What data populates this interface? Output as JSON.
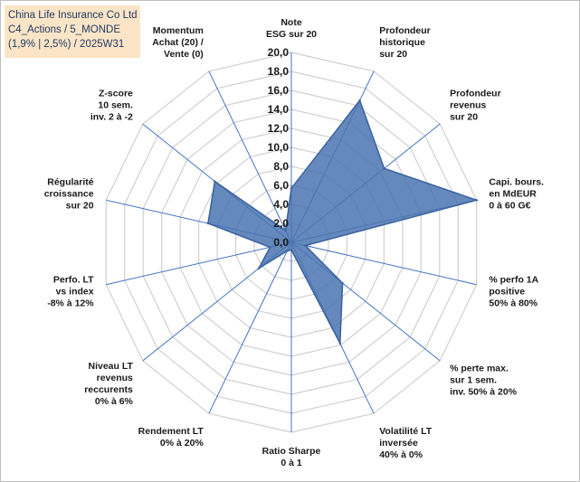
{
  "title_box": {
    "line1": "China Life Insurance Co Ltd",
    "line2": "C4_Actions / 5_MONDE",
    "line3": "(1,9% | 2,5%) / 2025W31"
  },
  "chart_data": {
    "type": "radar",
    "rmin": 0,
    "rmax": 20,
    "ticks": [
      "0,0",
      "2,0",
      "4,0",
      "6,0",
      "8,0",
      "10,0",
      "12,0",
      "14,0",
      "16,0",
      "18,0",
      "20,0"
    ],
    "grid": true,
    "colors": {
      "fill": "#4a74b0",
      "stroke": "#3a62a0",
      "grid": "#d0d0d0",
      "spoke": "#4472c4"
    },
    "categories": [
      [
        "Note",
        "ESG sur 20"
      ],
      [
        "Profondeur",
        "historique",
        "sur 20"
      ],
      [
        "Profondeur",
        "revenus",
        "sur 20"
      ],
      [
        "Capi. bours.",
        "en MdEUR",
        "0 à 60 G€"
      ],
      [
        "% perfo 1A",
        "positive",
        "50% à 80%"
      ],
      [
        "% perte max.",
        "sur 1 sem.",
        "inv. 50% à 20%"
      ],
      [
        "Volatilité LT",
        "inversée",
        "40% à 0%"
      ],
      [
        "Ratio Sharpe",
        "0 à 1"
      ],
      [
        "Rendement LT",
        "0% à 20%"
      ],
      [
        "Niveau LT",
        "revenus",
        "reccurents",
        "0% à 6%"
      ],
      [
        "Perfo. LT",
        "vs index",
        "-8% à 12%"
      ],
      [
        "Régularité",
        "croissance",
        "sur 20"
      ],
      [
        "Z-score",
        "10 sem.",
        "inv. 2 à -2"
      ],
      [
        "Momentum",
        "Achat (20) /",
        "Vente (0)"
      ]
    ],
    "values": [
      5.7,
      16.6,
      12.5,
      20.0,
      1.5,
      6.9,
      11.8,
      0.8,
      1.0,
      4.4,
      2.3,
      9.0,
      10.3,
      1.4
    ]
  }
}
